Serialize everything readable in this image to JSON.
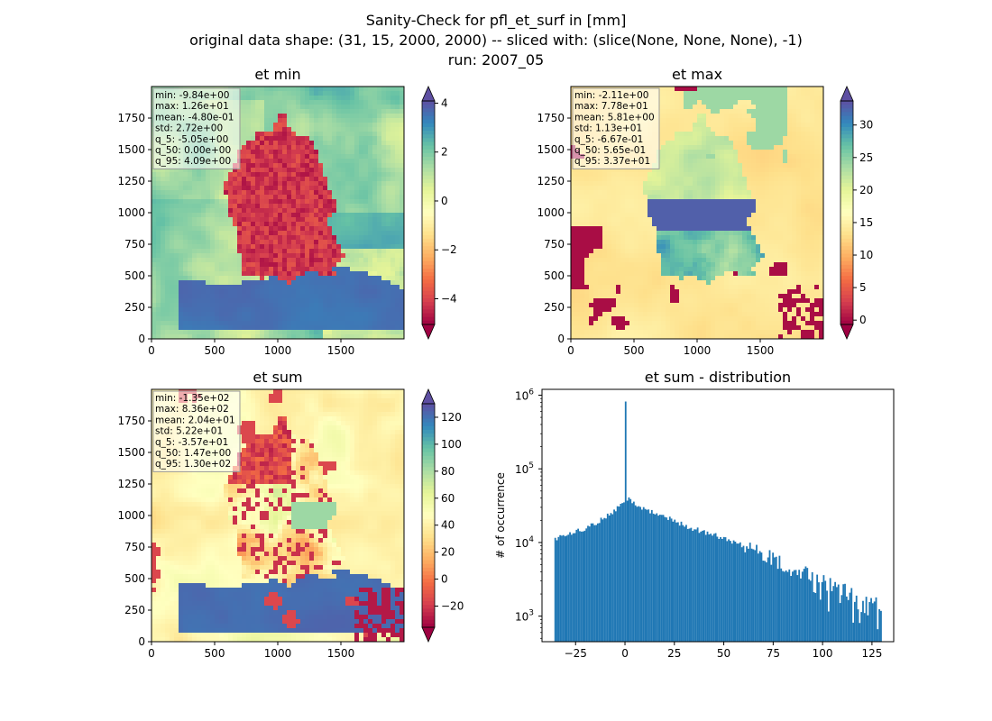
{
  "suptitle": {
    "line1": "Sanity-Check for pfl_et_surf in [mm]",
    "line2": "original data shape: (31, 15, 2000, 2000) -- sliced with: (slice(None, None, None), -1)",
    "line3": "run: 2007_05"
  },
  "colors": {
    "cmap_spectral": [
      "#9e0142",
      "#d53e4f",
      "#f46d43",
      "#fdae61",
      "#fee08b",
      "#ffffbf",
      "#e6f598",
      "#abdda4",
      "#66c2a5",
      "#3288bd",
      "#5e4fa2"
    ],
    "histogram_fill": "#1f77b4"
  },
  "chart_data": [
    {
      "type": "heatmap",
      "title": "et min",
      "xlim": [
        0,
        2000
      ],
      "ylim": [
        0,
        2000
      ],
      "xticks": [
        0,
        500,
        1000,
        1500
      ],
      "yticks": [
        0,
        250,
        500,
        750,
        1000,
        1250,
        1500,
        1750
      ],
      "colorbar": {
        "range": [
          -5.05,
          4.09
        ],
        "ticks": [
          "4",
          "2",
          "0",
          "−2",
          "−4"
        ],
        "tick_values": [
          4,
          2,
          0,
          -2,
          -4
        ],
        "extend": "both"
      },
      "stats": [
        "min: -9.84e+00",
        "max: 1.26e+01",
        "mean: -4.80e-01",
        "std: 2.72e+00",
        "q_5: -5.05e+00",
        "q_50: 0.00e+00",
        "q_95: 4.09e+00"
      ]
    },
    {
      "type": "heatmap",
      "title": "et max",
      "xlim": [
        0,
        2000
      ],
      "ylim": [
        0,
        2000
      ],
      "xticks": [
        0,
        500,
        1000,
        1500
      ],
      "yticks": [
        0,
        250,
        500,
        750,
        1000,
        1250,
        1500,
        1750
      ],
      "colorbar": {
        "range": [
          -0.667,
          33.7
        ],
        "ticks": [
          "30",
          "25",
          "20",
          "15",
          "10",
          "5",
          "0"
        ],
        "tick_values": [
          30,
          25,
          20,
          15,
          10,
          5,
          0
        ],
        "extend": "both"
      },
      "stats": [
        "min: -2.11e+00",
        "max: 7.78e+01",
        "mean: 5.81e+00",
        "std: 1.13e+01",
        "q_5: -6.67e-01",
        "q_50: 5.65e-01",
        "q_95: 3.37e+01"
      ]
    },
    {
      "type": "heatmap",
      "title": "et sum",
      "xlim": [
        0,
        2000
      ],
      "ylim": [
        0,
        2000
      ],
      "xticks": [
        0,
        500,
        1000,
        1500
      ],
      "yticks": [
        0,
        250,
        500,
        750,
        1000,
        1250,
        1500,
        1750
      ],
      "colorbar": {
        "range": [
          -35.7,
          130
        ],
        "ticks": [
          "120",
          "100",
          "80",
          "60",
          "40",
          "20",
          "0",
          "−20"
        ],
        "tick_values": [
          120,
          100,
          80,
          60,
          40,
          20,
          0,
          -20
        ],
        "extend": "both"
      },
      "stats": [
        "min: -1.35e+02",
        "max: 8.36e+02",
        "mean: 2.04e+01",
        "std: 5.22e+01",
        "q_5: -3.57e+01",
        "q_50: 1.47e+00",
        "q_95: 1.30e+02"
      ]
    },
    {
      "type": "bar",
      "title": "et sum - distribution",
      "ylabel": "# of occurrence",
      "yscale": "log",
      "xlim": [
        -42,
        136
      ],
      "ylim": [
        450,
        1200000
      ],
      "xticks": [
        -25,
        0,
        25,
        50,
        75,
        100,
        125
      ],
      "xtick_labels": [
        "−25",
        "0",
        "25",
        "50",
        "75",
        "100",
        "125"
      ],
      "yticks": [
        {
          "value": 1000,
          "base": "10",
          "exp": "3"
        },
        {
          "value": 10000,
          "base": "10",
          "exp": "4"
        },
        {
          "value": 100000,
          "base": "10",
          "exp": "5"
        },
        {
          "value": 1000000,
          "base": "10",
          "exp": "6"
        }
      ],
      "bin_range": [
        -35.7,
        130
      ],
      "bins": 200,
      "peak_x": 0,
      "peak_count": 820000,
      "profile": [
        [
          -35.7,
          11000
        ],
        [
          -30,
          12500
        ],
        [
          -20,
          15500
        ],
        [
          -10,
          22000
        ],
        [
          -5,
          27000
        ],
        [
          -1,
          34000
        ],
        [
          2,
          38000
        ],
        [
          5,
          33000
        ],
        [
          10,
          28000
        ],
        [
          20,
          22000
        ],
        [
          25,
          20000
        ],
        [
          30,
          17000
        ],
        [
          40,
          14000
        ],
        [
          50,
          11500
        ],
        [
          60,
          9000
        ],
        [
          70,
          7000
        ],
        [
          80,
          5200
        ],
        [
          90,
          4000
        ],
        [
          100,
          3000
        ],
        [
          110,
          2300
        ],
        [
          120,
          1700
        ],
        [
          127,
          1500
        ],
        [
          130,
          900
        ]
      ]
    }
  ]
}
